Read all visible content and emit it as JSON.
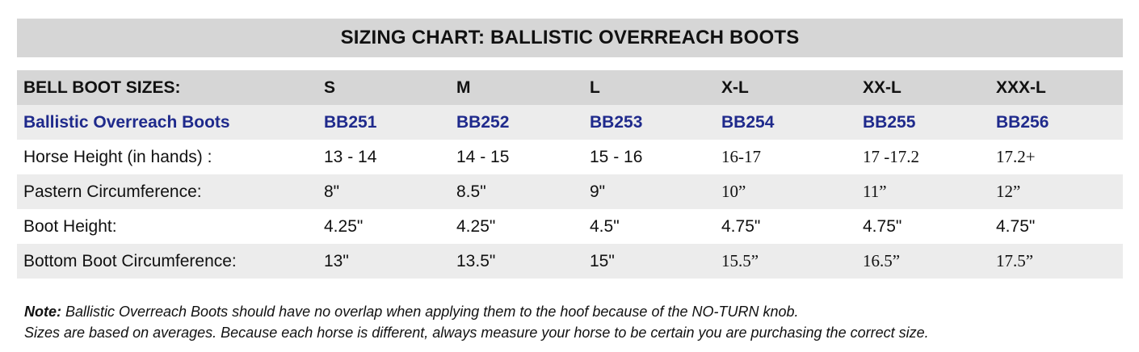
{
  "title": "SIZING CHART: BALLISTIC OVERREACH BOOTS",
  "columns": [
    "BELL BOOT SIZES:",
    "S",
    "M",
    "L",
    "X-L",
    "XX-L",
    "XXX-L"
  ],
  "rows": [
    {
      "label": "Ballistic Overreach Boots",
      "values": [
        "BB251",
        "BB252",
        "BB253",
        "BB254",
        "BB255",
        "BB256"
      ]
    },
    {
      "label": "Horse Height (in hands) :",
      "values": [
        "13 - 14",
        "14 - 15",
        "15 - 16",
        "16-17",
        "17 -17.2",
        "17.2+"
      ]
    },
    {
      "label": "Pastern Circumference:",
      "values": [
        "8\"",
        "8.5\"",
        "9\"",
        "10”",
        "11”",
        "12”"
      ]
    },
    {
      "label": "Boot Height:",
      "values": [
        "4.25\"",
        "4.25\"",
        "4.5\"",
        "4.75\"",
        "4.75\"",
        "4.75\""
      ]
    },
    {
      "label": "Bottom Boot Circumference:",
      "values": [
        "13\"",
        "13.5\"",
        "15\"",
        "15.5”",
        "16.5”",
        "17.5”"
      ]
    }
  ],
  "notes": {
    "note_label": "Note:",
    "line1": " Ballistic Overreach Boots should have no overlap when applying them to the hoof because of the NO-TURN knob.",
    "line2": "Sizes are based on averages. Because each horse is different, always measure your horse to be certain you are purchasing the correct size."
  },
  "colors": {
    "header_bg": "#d6d6d6",
    "shaded_row_bg": "#ececec",
    "product_text": "#1f2a8c"
  }
}
